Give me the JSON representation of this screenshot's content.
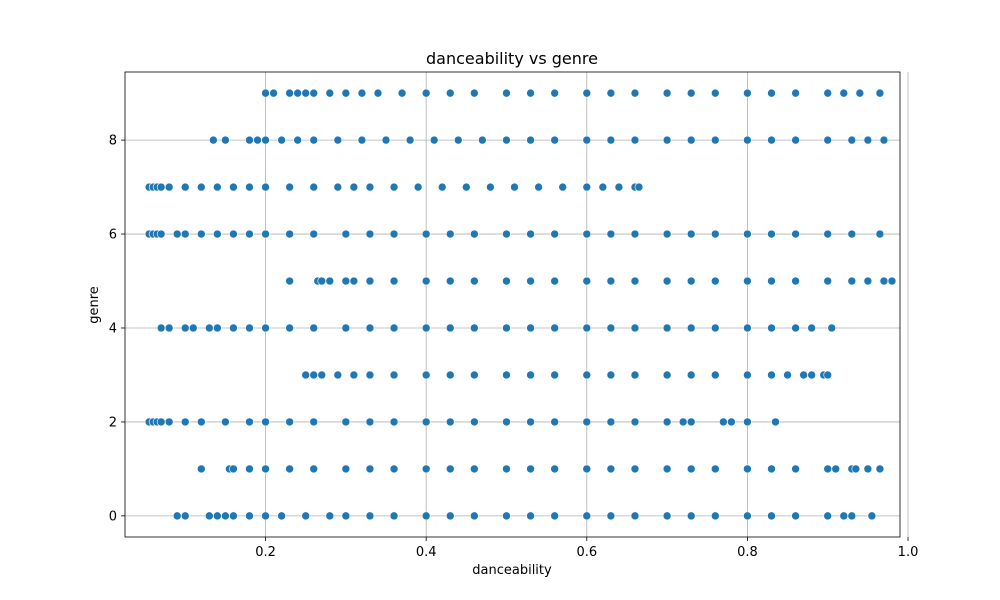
{
  "chart_data": {
    "type": "scatter",
    "title": "danceability vs genre",
    "xlabel": "danceability",
    "ylabel": "genre",
    "xlim": [
      0.025,
      0.99
    ],
    "ylim": [
      -0.45,
      9.45
    ],
    "xticks": [
      0.2,
      0.4,
      0.6,
      0.8,
      1.0
    ],
    "xtick_labels": [
      "0.2",
      "0.4",
      "0.6",
      "0.8",
      "1.0"
    ],
    "yticks": [
      0,
      2,
      4,
      6,
      8
    ],
    "ytick_labels": [
      "0",
      "2",
      "4",
      "6",
      "8"
    ],
    "grid": true,
    "marker_color": "#1f77b4",
    "series": [
      {
        "y": 0,
        "x": [
          0.09,
          0.1,
          0.13,
          0.14,
          0.15,
          0.16,
          0.18,
          0.2,
          0.22,
          0.25,
          0.28,
          0.3,
          0.33,
          0.36,
          0.4,
          0.43,
          0.46,
          0.5,
          0.53,
          0.56,
          0.6,
          0.63,
          0.66,
          0.7,
          0.73,
          0.76,
          0.8,
          0.83,
          0.86,
          0.9,
          0.92,
          0.93,
          0.955
        ]
      },
      {
        "y": 1,
        "x": [
          0.12,
          0.155,
          0.16,
          0.18,
          0.2,
          0.23,
          0.26,
          0.3,
          0.33,
          0.36,
          0.4,
          0.43,
          0.46,
          0.5,
          0.53,
          0.56,
          0.6,
          0.63,
          0.66,
          0.7,
          0.73,
          0.76,
          0.8,
          0.83,
          0.86,
          0.9,
          0.91,
          0.93,
          0.935,
          0.95,
          0.965
        ]
      },
      {
        "y": 2,
        "x": [
          0.055,
          0.06,
          0.065,
          0.07,
          0.08,
          0.1,
          0.12,
          0.15,
          0.18,
          0.2,
          0.23,
          0.26,
          0.3,
          0.33,
          0.36,
          0.4,
          0.43,
          0.46,
          0.5,
          0.53,
          0.56,
          0.6,
          0.63,
          0.66,
          0.7,
          0.72,
          0.73,
          0.77,
          0.78,
          0.8,
          0.835
        ]
      },
      {
        "y": 3,
        "x": [
          0.25,
          0.26,
          0.27,
          0.29,
          0.31,
          0.33,
          0.36,
          0.4,
          0.43,
          0.46,
          0.5,
          0.53,
          0.56,
          0.6,
          0.63,
          0.66,
          0.7,
          0.73,
          0.76,
          0.8,
          0.83,
          0.85,
          0.87,
          0.88,
          0.895,
          0.9
        ]
      },
      {
        "y": 4,
        "x": [
          0.07,
          0.08,
          0.1,
          0.11,
          0.13,
          0.14,
          0.16,
          0.18,
          0.2,
          0.23,
          0.26,
          0.3,
          0.33,
          0.36,
          0.4,
          0.43,
          0.46,
          0.5,
          0.53,
          0.56,
          0.6,
          0.63,
          0.66,
          0.7,
          0.73,
          0.76,
          0.8,
          0.83,
          0.86,
          0.88,
          0.905
        ]
      },
      {
        "y": 5,
        "x": [
          0.23,
          0.265,
          0.27,
          0.28,
          0.3,
          0.31,
          0.33,
          0.36,
          0.4,
          0.43,
          0.46,
          0.5,
          0.53,
          0.56,
          0.6,
          0.63,
          0.66,
          0.7,
          0.73,
          0.76,
          0.8,
          0.83,
          0.86,
          0.9,
          0.93,
          0.95,
          0.97,
          0.98
        ]
      },
      {
        "y": 6,
        "x": [
          0.055,
          0.06,
          0.065,
          0.07,
          0.09,
          0.1,
          0.12,
          0.14,
          0.16,
          0.18,
          0.2,
          0.23,
          0.26,
          0.3,
          0.33,
          0.36,
          0.4,
          0.43,
          0.46,
          0.5,
          0.53,
          0.56,
          0.6,
          0.63,
          0.66,
          0.7,
          0.73,
          0.76,
          0.8,
          0.83,
          0.86,
          0.9,
          0.93,
          0.965
        ]
      },
      {
        "y": 7,
        "x": [
          0.055,
          0.06,
          0.065,
          0.07,
          0.08,
          0.1,
          0.12,
          0.14,
          0.16,
          0.18,
          0.2,
          0.23,
          0.26,
          0.29,
          0.31,
          0.33,
          0.36,
          0.39,
          0.42,
          0.45,
          0.48,
          0.51,
          0.54,
          0.57,
          0.6,
          0.62,
          0.64,
          0.66,
          0.665
        ]
      },
      {
        "y": 8,
        "x": [
          0.135,
          0.15,
          0.18,
          0.19,
          0.2,
          0.22,
          0.24,
          0.26,
          0.29,
          0.32,
          0.35,
          0.38,
          0.41,
          0.44,
          0.47,
          0.5,
          0.53,
          0.56,
          0.6,
          0.63,
          0.66,
          0.7,
          0.73,
          0.76,
          0.8,
          0.83,
          0.86,
          0.9,
          0.93,
          0.95,
          0.97
        ]
      },
      {
        "y": 9,
        "x": [
          0.2,
          0.21,
          0.23,
          0.24,
          0.25,
          0.26,
          0.28,
          0.3,
          0.32,
          0.34,
          0.37,
          0.4,
          0.43,
          0.46,
          0.5,
          0.53,
          0.56,
          0.6,
          0.63,
          0.66,
          0.7,
          0.73,
          0.76,
          0.8,
          0.83,
          0.86,
          0.9,
          0.92,
          0.94,
          0.965
        ]
      }
    ]
  }
}
